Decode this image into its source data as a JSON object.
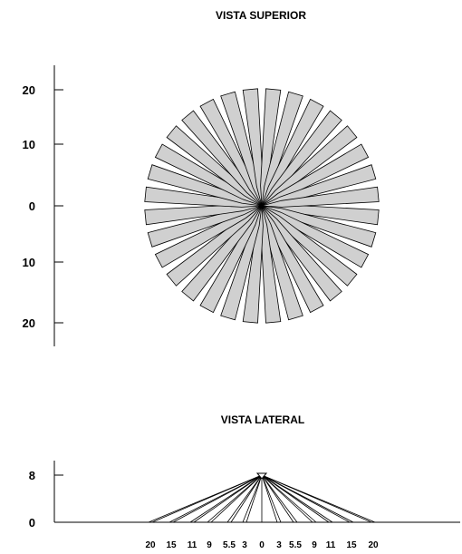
{
  "top_view": {
    "title": "VISTA SUPERIOR",
    "axis_labels": [
      "20",
      "10",
      "0",
      "10",
      "20"
    ],
    "beam_fill": "#d0d0d0",
    "beam_stroke": "#000000"
  },
  "side_view": {
    "title": "VISTA LATERAL",
    "axis_labels": [
      "8",
      "0"
    ],
    "distance_labels": [
      "20",
      "15",
      "11",
      "9",
      "5.5",
      "3",
      "0",
      "3",
      "5.5",
      "9",
      "11",
      "15",
      "20"
    ]
  }
}
